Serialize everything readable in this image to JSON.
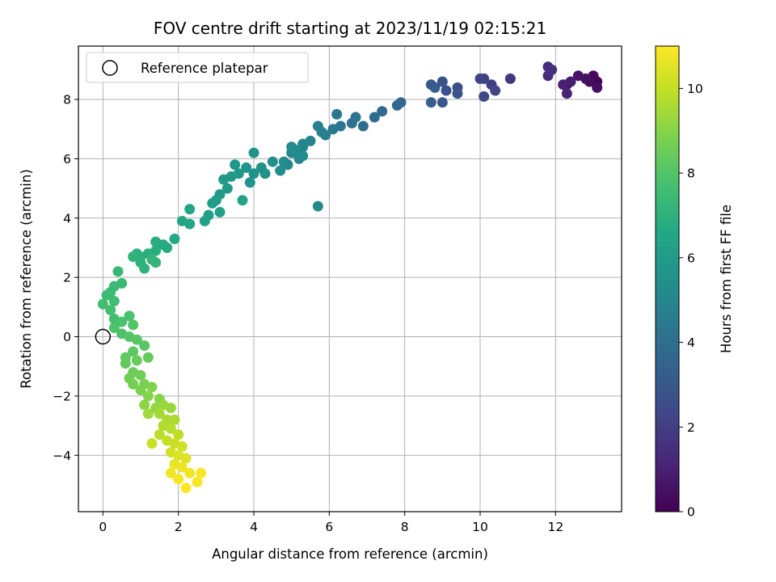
{
  "chart_data": {
    "type": "scatter",
    "title": "FOV centre drift starting at 2023/11/19 02:15:21",
    "xlabel": "Angular distance from reference (arcmin)",
    "ylabel": "Rotation from reference (arcmin)",
    "xlim": [
      -0.65,
      13.75
    ],
    "ylim": [
      -5.9,
      9.8
    ],
    "xticks": [
      0,
      2,
      4,
      6,
      8,
      10,
      12
    ],
    "yticks": [
      -4,
      -2,
      0,
      2,
      4,
      6,
      8
    ],
    "grid": true,
    "legend": {
      "placement": "top-left",
      "entries": [
        "Reference platepar"
      ]
    },
    "reference_point": {
      "x": 0,
      "y": 0
    },
    "colorbar": {
      "label": "Hours from first FF file",
      "colormap": "viridis",
      "range": [
        0,
        11
      ],
      "ticks": [
        0,
        2,
        4,
        6,
        8,
        10
      ]
    },
    "points": [
      [
        13.1,
        8.6,
        0.1
      ],
      [
        13.0,
        8.8,
        0.2
      ],
      [
        12.9,
        8.6,
        0.3
      ],
      [
        13.1,
        8.4,
        0.4
      ],
      [
        12.8,
        8.7,
        0.5
      ],
      [
        12.6,
        8.8,
        0.6
      ],
      [
        12.3,
        8.5,
        0.8
      ],
      [
        12.4,
        8.6,
        0.9
      ],
      [
        12.2,
        8.5,
        1.0
      ],
      [
        12.3,
        8.2,
        1.1
      ],
      [
        11.8,
        8.8,
        1.3
      ],
      [
        11.8,
        9.1,
        1.4
      ],
      [
        11.9,
        9.0,
        1.5
      ],
      [
        10.8,
        8.7,
        1.8
      ],
      [
        10.3,
        8.5,
        2.0
      ],
      [
        10.1,
        8.7,
        2.1
      ],
      [
        10.0,
        8.7,
        2.2
      ],
      [
        10.4,
        8.3,
        2.3
      ],
      [
        10.1,
        8.1,
        2.4
      ],
      [
        9.4,
        8.4,
        2.6
      ],
      [
        9.1,
        8.3,
        2.7
      ],
      [
        9.0,
        8.6,
        2.8
      ],
      [
        9.4,
        8.2,
        2.9
      ],
      [
        9.0,
        7.9,
        3.0
      ],
      [
        8.7,
        8.5,
        3.1
      ],
      [
        8.8,
        8.4,
        3.2
      ],
      [
        8.7,
        7.9,
        3.3
      ],
      [
        7.9,
        7.9,
        3.6
      ],
      [
        7.8,
        7.8,
        3.7
      ],
      [
        7.4,
        7.6,
        3.8
      ],
      [
        7.2,
        7.4,
        3.9
      ],
      [
        6.9,
        7.1,
        4.0
      ],
      [
        6.6,
        7.2,
        4.1
      ],
      [
        6.7,
        7.4,
        4.2
      ],
      [
        6.3,
        7.1,
        4.3
      ],
      [
        6.2,
        7.5,
        4.4
      ],
      [
        6.1,
        7.0,
        4.5
      ],
      [
        5.9,
        6.8,
        4.6
      ],
      [
        5.7,
        7.1,
        4.7
      ],
      [
        5.8,
        6.9,
        4.8
      ],
      [
        5.5,
        6.6,
        4.9
      ],
      [
        5.3,
        6.4,
        4.9
      ],
      [
        5.2,
        6.0,
        5.0
      ],
      [
        5.0,
        6.2,
        5.0
      ],
      [
        5.3,
        6.5,
        5.0
      ],
      [
        5.7,
        4.4,
        5.1
      ],
      [
        4.9,
        5.8,
        5.1
      ],
      [
        5.0,
        6.4,
        5.2
      ],
      [
        4.8,
        5.9,
        5.2
      ],
      [
        5.3,
        6.1,
        5.3
      ],
      [
        5.1,
        6.3,
        5.3
      ],
      [
        4.7,
        5.6,
        5.4
      ],
      [
        4.5,
        5.9,
        5.4
      ],
      [
        4.3,
        5.5,
        5.5
      ],
      [
        4.2,
        5.7,
        5.5
      ],
      [
        4.0,
        6.2,
        5.6
      ],
      [
        4.0,
        5.5,
        5.6
      ],
      [
        3.9,
        5.2,
        5.7
      ],
      [
        3.8,
        5.7,
        5.7
      ],
      [
        3.6,
        5.5,
        5.8
      ],
      [
        3.5,
        5.8,
        5.8
      ],
      [
        3.4,
        5.4,
        5.9
      ],
      [
        3.3,
        5.0,
        5.9
      ],
      [
        3.2,
        5.3,
        6.0
      ],
      [
        3.1,
        4.8,
        6.0
      ],
      [
        3.0,
        4.6,
        6.1
      ],
      [
        2.9,
        4.5,
        6.1
      ],
      [
        3.1,
        4.2,
        6.2
      ],
      [
        2.8,
        4.1,
        6.2
      ],
      [
        2.7,
        3.9,
        6.3
      ],
      [
        3.7,
        4.6,
        6.3
      ],
      [
        2.3,
        4.3,
        6.4
      ],
      [
        2.1,
        3.9,
        6.5
      ],
      [
        2.3,
        3.8,
        6.5
      ],
      [
        1.9,
        3.3,
        6.6
      ],
      [
        1.7,
        3.0,
        6.7
      ],
      [
        1.6,
        3.1,
        6.7
      ],
      [
        1.4,
        3.2,
        6.8
      ],
      [
        1.4,
        2.9,
        6.8
      ],
      [
        1.2,
        2.8,
        6.9
      ],
      [
        1.0,
        2.7,
        6.9
      ],
      [
        1.0,
        2.5,
        7.0
      ],
      [
        0.9,
        2.8,
        7.0
      ],
      [
        1.1,
        2.3,
        7.1
      ],
      [
        0.8,
        2.7,
        7.1
      ],
      [
        1.3,
        2.6,
        7.2
      ],
      [
        1.4,
        2.5,
        7.2
      ],
      [
        0.4,
        2.2,
        7.3
      ],
      [
        0.5,
        1.8,
        7.4
      ],
      [
        0.3,
        1.7,
        7.4
      ],
      [
        0.2,
        1.5,
        7.5
      ],
      [
        0.1,
        1.4,
        7.5
      ],
      [
        0.3,
        1.2,
        7.6
      ],
      [
        0.0,
        1.1,
        7.6
      ],
      [
        0.2,
        0.9,
        7.7
      ],
      [
        0.3,
        0.6,
        7.7
      ],
      [
        0.5,
        0.5,
        7.8
      ],
      [
        0.7,
        0.7,
        7.8
      ],
      [
        0.3,
        0.3,
        7.9
      ],
      [
        0.5,
        0.1,
        7.9
      ],
      [
        0.8,
        0.4,
        8.0
      ],
      [
        0.7,
        0.0,
        8.0
      ],
      [
        0.9,
        -0.1,
        8.1
      ],
      [
        1.1,
        -0.3,
        8.1
      ],
      [
        0.8,
        -0.5,
        8.2
      ],
      [
        0.6,
        -0.7,
        8.3
      ],
      [
        0.6,
        -0.9,
        8.3
      ],
      [
        0.9,
        -0.8,
        8.4
      ],
      [
        1.2,
        -0.7,
        8.4
      ],
      [
        0.8,
        -1.2,
        8.5
      ],
      [
        0.7,
        -1.4,
        8.6
      ],
      [
        1.0,
        -1.3,
        8.6
      ],
      [
        0.8,
        -1.6,
        8.7
      ],
      [
        1.1,
        -1.6,
        8.8
      ],
      [
        1.0,
        -1.8,
        8.8
      ],
      [
        1.3,
        -1.7,
        8.9
      ],
      [
        1.2,
        -2.0,
        9.0
      ],
      [
        1.5,
        -2.1,
        9.0
      ],
      [
        1.1,
        -2.3,
        9.1
      ],
      [
        1.4,
        -2.4,
        9.2
      ],
      [
        1.6,
        -2.3,
        9.3
      ],
      [
        1.8,
        -2.4,
        9.3
      ],
      [
        1.2,
        -2.6,
        9.4
      ],
      [
        1.5,
        -2.6,
        9.5
      ],
      [
        1.7,
        -2.8,
        9.6
      ],
      [
        1.9,
        -2.8,
        9.6
      ],
      [
        1.6,
        -3.0,
        9.7
      ],
      [
        1.8,
        -3.1,
        9.8
      ],
      [
        1.5,
        -3.3,
        9.8
      ],
      [
        2.0,
        -3.3,
        9.9
      ],
      [
        1.7,
        -3.5,
        10.0
      ],
      [
        1.9,
        -3.6,
        10.1
      ],
      [
        1.3,
        -3.6,
        10.1
      ],
      [
        2.1,
        -3.7,
        10.2
      ],
      [
        1.8,
        -3.9,
        10.3
      ],
      [
        2.0,
        -4.0,
        10.4
      ],
      [
        2.2,
        -4.1,
        10.5
      ],
      [
        1.9,
        -4.3,
        10.6
      ],
      [
        2.1,
        -4.4,
        10.7
      ],
      [
        1.8,
        -4.6,
        10.8
      ],
      [
        2.3,
        -4.6,
        10.8
      ],
      [
        2.0,
        -4.8,
        10.9
      ],
      [
        2.6,
        -4.6,
        10.9
      ],
      [
        2.5,
        -4.9,
        10.9
      ],
      [
        2.2,
        -5.1,
        11.0
      ]
    ]
  }
}
